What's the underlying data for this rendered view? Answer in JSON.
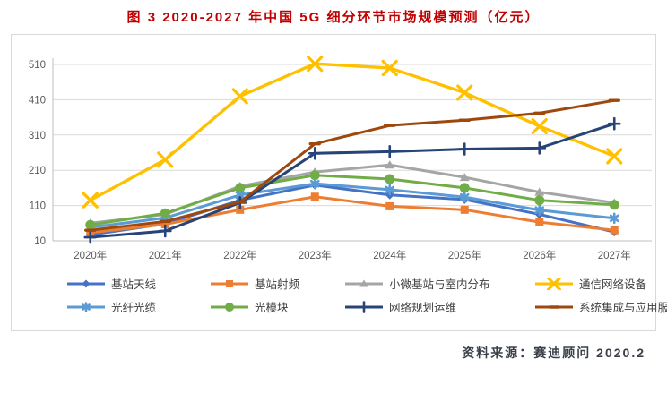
{
  "page": {
    "title": "图 3 2020-2027 年中国 5G 细分环节市场规模预测（亿元）",
    "title_color": "#c00000",
    "source_label": "资料来源：赛迪顾问  2020.2"
  },
  "chart_data": {
    "type": "line",
    "title": "2020-2027年中国5G细分环节市场规模预测（亿元）",
    "xlabel": "",
    "ylabel": "亿元",
    "categories": [
      "2020年",
      "2021年",
      "2022年",
      "2023年",
      "2024年",
      "2025年",
      "2026年",
      "2027年"
    ],
    "yticks": [
      10,
      110,
      210,
      310,
      410,
      510
    ],
    "ylim": [
      10,
      520
    ],
    "grid": true,
    "legend_position": "bottom",
    "axis_color": "#bfbfbf",
    "grid_color": "#d9d9d9",
    "tick_label_color": "#595959",
    "series": [
      {
        "name": "基站天线",
        "color": "#4472C4",
        "marker": "diamond",
        "values": [
          27,
          58,
          125,
          168,
          140,
          127,
          85,
          35
        ]
      },
      {
        "name": "基站射频",
        "color": "#ED7D31",
        "marker": "square",
        "values": [
          33,
          57,
          98,
          135,
          108,
          98,
          63,
          40
        ]
      },
      {
        "name": "小微基站与室内分布",
        "color": "#A5A5A5",
        "marker": "triangle",
        "values": [
          60,
          85,
          165,
          205,
          225,
          190,
          148,
          118
        ]
      },
      {
        "name": "通信网络设备",
        "color": "#FFC000",
        "marker": "x",
        "values": [
          125,
          240,
          420,
          512,
          500,
          430,
          335,
          250
        ]
      },
      {
        "name": "光纤光缆",
        "color": "#5B9BD5",
        "marker": "asterisk",
        "values": [
          48,
          75,
          140,
          172,
          155,
          134,
          97,
          74
        ]
      },
      {
        "name": "光模块",
        "color": "#70AD47",
        "marker": "circle",
        "values": [
          55,
          88,
          160,
          196,
          185,
          160,
          125,
          112
        ]
      },
      {
        "name": "网络规划运维",
        "color": "#264478",
        "marker": "plus",
        "values": [
          20,
          38,
          118,
          258,
          263,
          270,
          273,
          342
        ]
      },
      {
        "name": "系统集成与应用服务",
        "color": "#9E480E",
        "marker": "dash",
        "values": [
          40,
          65,
          120,
          285,
          337,
          352,
          372,
          408
        ]
      }
    ]
  }
}
